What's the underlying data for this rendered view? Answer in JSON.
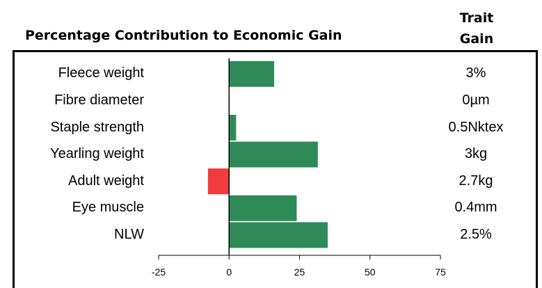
{
  "header": {
    "title": "Percentage Contribution to Economic Gain",
    "gain_title_line1": "Trait",
    "gain_title_line2": "Gain"
  },
  "colors": {
    "positive": "#2e8b57",
    "negative": "#f03c3c",
    "axis": "#000000"
  },
  "chart_data": {
    "type": "bar",
    "orientation": "horizontal",
    "title": "Percentage Contribution to Economic Gain",
    "categories": [
      "Fleece weight",
      "Fibre diameter",
      "Staple strength",
      "Yearling weight",
      "Adult weight",
      "Eye muscle",
      "NLW"
    ],
    "values": [
      16,
      0,
      2.5,
      31.5,
      -7.5,
      24,
      35
    ],
    "xlim": [
      -25,
      75
    ],
    "xticks": [
      "-25",
      "0",
      "25",
      "50",
      "75"
    ],
    "xtick_values": [
      -25,
      0,
      25,
      50,
      75
    ],
    "grid": false,
    "trait_gain_header": "Trait Gain",
    "trait_gain": [
      "3%",
      "0µm",
      "0.5Nktex",
      "3kg",
      "2.7kg",
      "0.4mm",
      "2.5%"
    ]
  }
}
